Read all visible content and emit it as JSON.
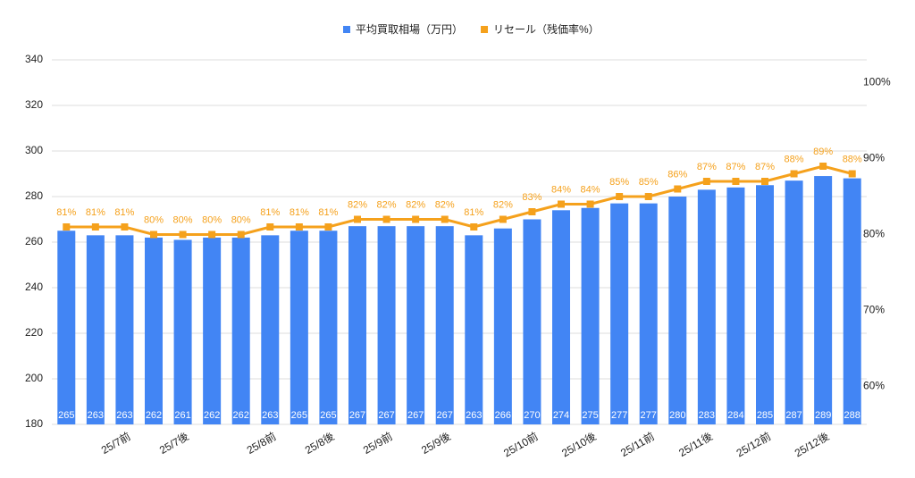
{
  "chart_data": {
    "type": "bar",
    "categories": [
      null,
      null,
      "25/7前",
      null,
      "25/7後",
      null,
      null,
      "25/8前",
      null,
      "25/8後",
      null,
      "25/9前",
      null,
      "25/9後",
      null,
      null,
      "25/10前",
      null,
      "25/10後",
      null,
      "25/11前",
      null,
      "25/11後",
      null,
      "25/12前",
      null,
      "25/12後",
      null
    ],
    "series": [
      {
        "name": "平均買取相場（万円）",
        "type": "bar",
        "color": "#4285f4",
        "values": [
          265,
          263,
          263,
          262,
          261,
          262,
          262,
          263,
          265,
          265,
          267,
          267,
          267,
          267,
          263,
          266,
          270,
          274,
          275,
          277,
          277,
          280,
          283,
          284,
          285,
          287,
          289,
          288
        ]
      },
      {
        "name": "リセール（残価率%）",
        "type": "line",
        "axis": "y2",
        "color": "#f5a11c",
        "values": [
          81,
          81,
          81,
          80,
          80,
          80,
          80,
          81,
          81,
          81,
          82,
          82,
          82,
          82,
          81,
          82,
          83,
          84,
          84,
          85,
          85,
          86,
          87,
          87,
          87,
          88,
          89,
          88
        ],
        "value_labels": [
          "81%",
          "81%",
          "81%",
          "80%",
          "80%",
          "80%",
          "80%",
          "81%",
          "81%",
          "81%",
          "82%",
          "82%",
          "82%",
          "82%",
          "81%",
          "82%",
          "83%",
          "84%",
          "84%",
          "85%",
          "85%",
          "86%",
          "87%",
          "87%",
          "87%",
          "88%",
          "89%",
          "88%"
        ]
      }
    ],
    "ylim": [
      180,
      340
    ],
    "yticks": [
      180,
      200,
      220,
      240,
      260,
      280,
      300,
      320,
      340
    ],
    "y2lim": [
      55,
      103
    ],
    "y2ticks": [
      {
        "value": 60,
        "label": "60%"
      },
      {
        "value": 70,
        "label": "70%"
      },
      {
        "value": 80,
        "label": "80%"
      },
      {
        "value": 90,
        "label": "90%"
      },
      {
        "value": 100,
        "label": "100%"
      }
    ],
    "grid": true,
    "legend": "top"
  }
}
